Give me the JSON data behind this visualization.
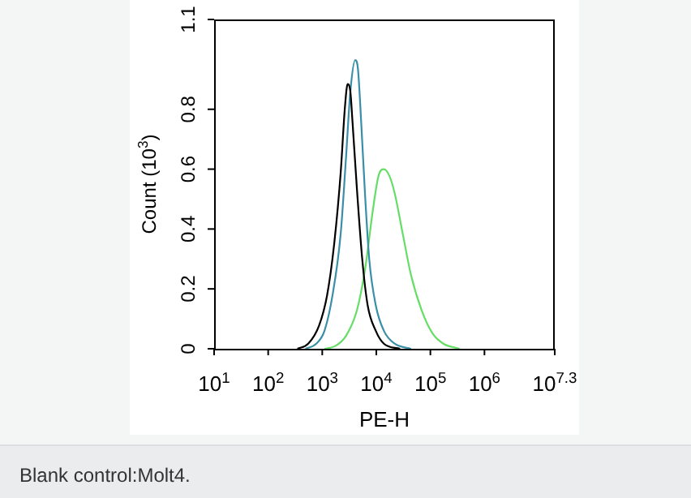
{
  "chart_data": {
    "type": "line",
    "xlabel": "PE-H",
    "ylabel": "Count (10$^{3}$)",
    "log": "x",
    "grid": false,
    "legend": false,
    "marker": "none",
    "line_style": "solid",
    "xlim": [
      10,
      19952623
    ],
    "xticks": [
      {
        "value": 10,
        "label": "10$^{1}$"
      },
      {
        "value": 100,
        "label": "10$^{2}$"
      },
      {
        "value": 1000,
        "label": "10$^{3}$"
      },
      {
        "value": 10000,
        "label": "10$^{4}$"
      },
      {
        "value": 100000,
        "label": "10$^{5}$"
      },
      {
        "value": 1000000,
        "label": "10$^{6}$"
      },
      {
        "value": 19952623,
        "label": "10$^{7.3}$"
      }
    ],
    "ylim": [
      0,
      1.1
    ],
    "yticks": [
      0,
      0.2,
      0.4,
      0.6,
      0.8,
      1.1
    ],
    "series": [
      {
        "color": "#000000",
        "x": [
          347,
          550,
          871,
          1230,
          1660,
          2190,
          2630,
          2950,
          3310,
          3630,
          4370,
          5500,
          6920,
          9770,
          13800,
          27500
        ],
        "values": [
          0,
          0.017,
          0.077,
          0.179,
          0.349,
          0.587,
          0.808,
          0.884,
          0.859,
          0.757,
          0.536,
          0.298,
          0.145,
          0.06,
          0.017,
          0
        ]
      },
      {
        "color": "#3a8fa8",
        "x": [
          490,
          776,
          1100,
          1550,
          2190,
          2750,
          3310,
          4070,
          4570,
          5250,
          6170,
          7410,
          9770,
          13800,
          21900,
          43700
        ],
        "values": [
          0,
          0.017,
          0.06,
          0.179,
          0.383,
          0.638,
          0.859,
          0.964,
          0.935,
          0.757,
          0.519,
          0.298,
          0.145,
          0.06,
          0.017,
          0
        ]
      },
      {
        "color": "#66dd66",
        "x": [
          1100,
          1740,
          2750,
          4370,
          6170,
          8710,
          11000,
          13800,
          17400,
          21900,
          30900,
          43700,
          69200,
          110000,
          174000,
          347000
        ],
        "values": [
          0,
          0.009,
          0.043,
          0.128,
          0.264,
          0.468,
          0.578,
          0.6,
          0.578,
          0.519,
          0.383,
          0.247,
          0.128,
          0.051,
          0.017,
          0
        ]
      }
    ],
    "annotations": [
      "Blank control:Molt4."
    ]
  }
}
